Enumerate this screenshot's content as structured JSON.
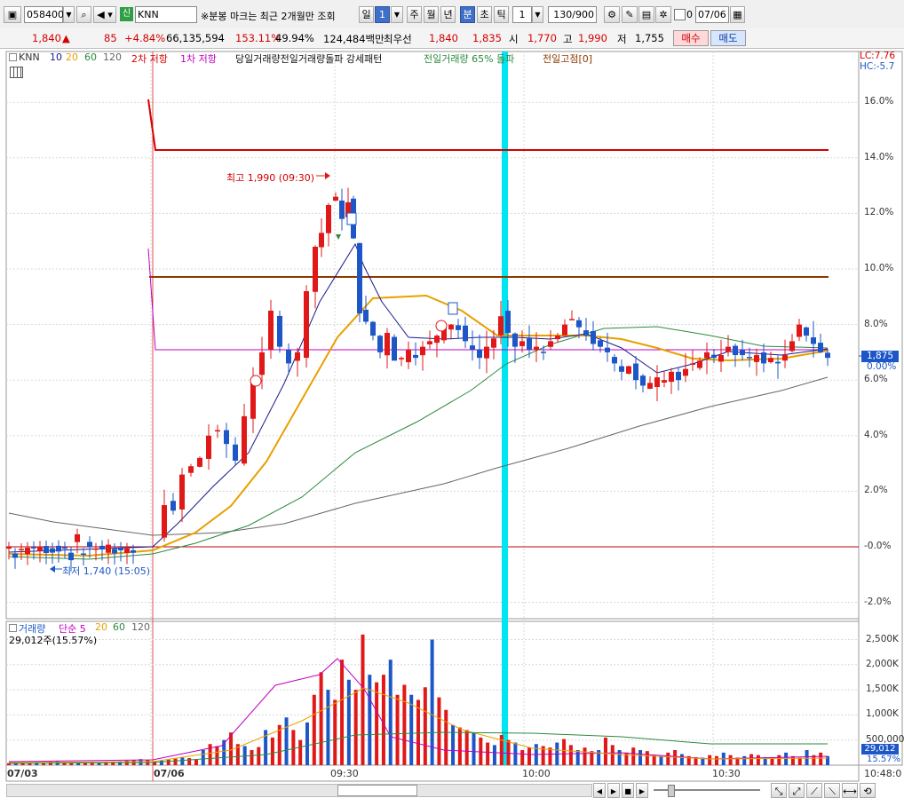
{
  "toolbar": {
    "code": "058400",
    "badge": "신",
    "name": "KNN",
    "notice": "※분봉 마크는 최근 2개월만 조회",
    "tabs": [
      "일",
      "1",
      "주",
      "월",
      "년",
      "분",
      "초",
      "틱"
    ],
    "selected_tab": "분",
    "interval_value": "1",
    "count": "130/900",
    "checkbox_label": "0",
    "date": "07/06"
  },
  "quote": {
    "price": "1,840",
    "change": "85",
    "rate": "+4.84%",
    "volume": "66,135,594",
    "vol_ratio": "153.11%",
    "turnover": "49.94%",
    "amount": "124,484백만",
    "ask_label": "최우선",
    "ask1": "1,840",
    "bid1": "1,835",
    "open_label": "시",
    "open": "1,770",
    "high_label": "고",
    "high": "1,990",
    "low_label": "저",
    "low": "1,755",
    "buy_label": "매수",
    "sell_label": "매도"
  },
  "legend": {
    "name": "KNN",
    "ma": [
      "10",
      "20",
      "60",
      "120"
    ],
    "resist2": "2차 저항",
    "resist1": "1차 저항",
    "items": "당일거래량전일거래량돌파 강세패턴",
    "prevvol": "전일거래량 65% 돌파",
    "prevhigh": "전일고점[0]",
    "lc": "LC:7.76",
    "hc": "HC:-5.7"
  },
  "vol_legend": {
    "title": "거래량",
    "simple": "단순 5",
    "ma": [
      "20",
      "60",
      "120"
    ],
    "current": "29,012주(15.57%)"
  },
  "annotations": {
    "high": "최고 1,990 (09:30)",
    "low": "최저 1,740 (15:05)",
    "price_tag": "1,875",
    "price_tag_pct": "0.00%",
    "vol_tag": "29,012",
    "vol_tag_pct": "15.57%"
  },
  "colors": {
    "up": "#e01818",
    "down": "#1d57c7",
    "ma10": "#1a1a8c",
    "ma20": "#e8a000",
    "ma60": "#2b8a3e",
    "ma120": "#666666",
    "resist2": "#d40000",
    "resist1": "#c000c0",
    "prevhigh": "#8b3a00",
    "highlight": "#00e5f0"
  },
  "chart_data": {
    "type": "candlestick",
    "y_axis_price_pct": [
      "16.0%",
      "14.0%",
      "12.0%",
      "10.0%",
      "8.0%",
      "6.0%",
      "4.0%",
      "2.0%",
      "-0.0%",
      "-2.0%"
    ],
    "y_axis_volume": [
      "2,500K",
      "2,000K",
      "1,500K",
      "1,000K",
      "500,000"
    ],
    "x_labels": [
      "07/03",
      "07/06",
      "09:30",
      "10:00",
      "10:30",
      "10:48:0"
    ],
    "price_range_pct": [
      -2.0,
      16.0
    ],
    "high": 1990,
    "low": 1740,
    "close": 1875,
    "resistance_levels_pct": [
      14.2,
      9.7,
      7.1
    ]
  }
}
